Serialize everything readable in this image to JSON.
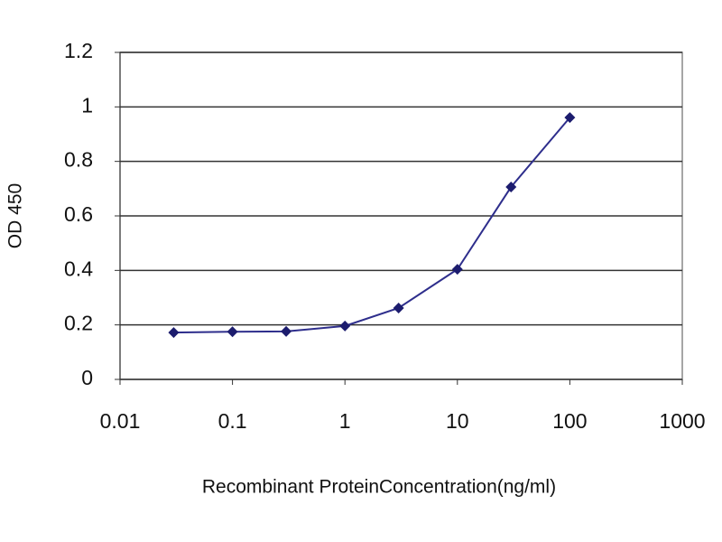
{
  "chart_data": {
    "type": "line",
    "x": [
      0.03,
      0.1,
      0.3,
      1,
      3,
      10,
      30,
      100
    ],
    "values": [
      0.172,
      0.175,
      0.176,
      0.196,
      0.262,
      0.404,
      0.706,
      0.961
    ],
    "color": "#2e2e8c",
    "marker_color": "#1c1c6e",
    "x_label": "Recombinant ProteinConcentration(ng/ml)",
    "y_label": "OD 450",
    "xlim": [
      0.01,
      1000
    ],
    "xticks": [
      0.01,
      0.1,
      1,
      10,
      100,
      1000
    ],
    "xlog": true,
    "ylim": [
      0,
      1.2
    ],
    "yticks": [
      0,
      0.2,
      0.4,
      0.6,
      0.8,
      1,
      1.2
    ],
    "grid": true
  }
}
